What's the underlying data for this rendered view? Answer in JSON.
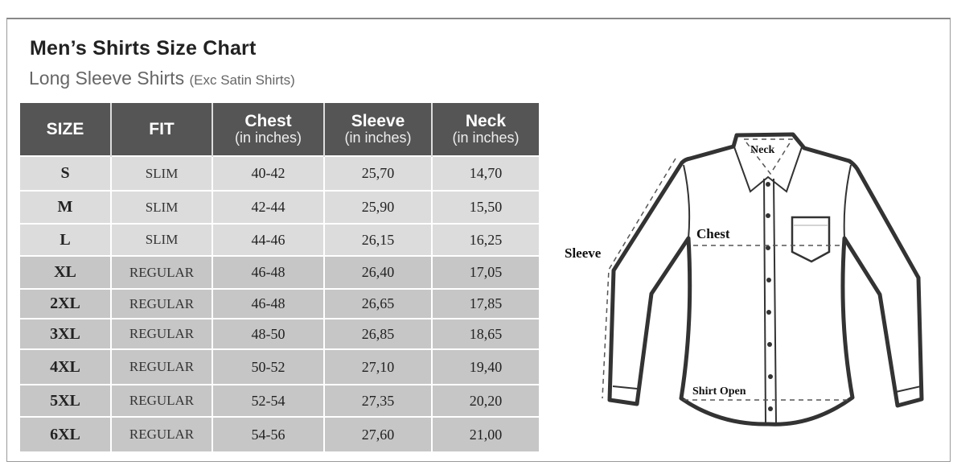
{
  "title": "Men’s Shirts Size Chart",
  "subtitle": "Long Sleeve Shirts",
  "subtitle_note": "(Exc Satin Shirts)",
  "table": {
    "headers": [
      {
        "label": "SIZE",
        "unit": ""
      },
      {
        "label": "FIT",
        "unit": ""
      },
      {
        "label": "Chest",
        "unit": "(in inches)"
      },
      {
        "label": "Sleeve",
        "unit": "(in inches)"
      },
      {
        "label": "Neck",
        "unit": "(in inches)"
      }
    ],
    "rows": [
      [
        "S",
        "SLIM",
        "40-42",
        "25,70",
        "14,70"
      ],
      [
        "M",
        "SLIM",
        "42-44",
        "25,90",
        "15,50"
      ],
      [
        "L",
        "SLIM",
        "44-46",
        "26,15",
        "16,25"
      ],
      [
        "XL",
        "REGULAR",
        "46-48",
        "26,40",
        "17,05"
      ],
      [
        "2XL",
        "REGULAR",
        "46-48",
        "26,65",
        "17,85"
      ],
      [
        "3XL",
        "REGULAR",
        "48-50",
        "26,85",
        "18,65"
      ],
      [
        "4XL",
        "REGULAR",
        "50-52",
        "27,10",
        "19,40"
      ],
      [
        "5XL",
        "REGULAR",
        "52-54",
        "27,35",
        "20,20"
      ],
      [
        "6XL",
        "REGULAR",
        "54-56",
        "27,60",
        "21,00"
      ]
    ]
  },
  "diagram": {
    "labels": {
      "neck": "Neck",
      "chest": "Chest",
      "sleeve": "Sleeve",
      "shirt_open": "Shirt Open"
    }
  },
  "colors": {
    "header_bg": "#555555",
    "row_light": "#dcdcdc",
    "row_dark": "#c6c6c6"
  }
}
